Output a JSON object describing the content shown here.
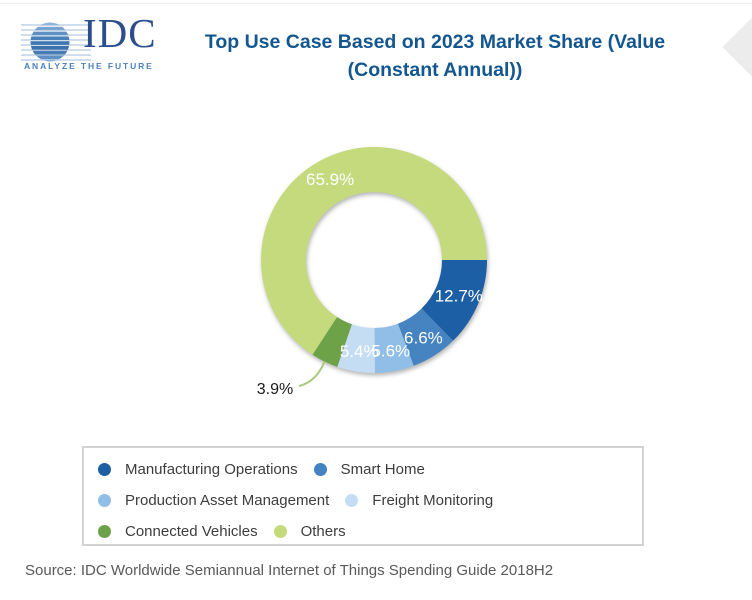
{
  "header": {
    "logo": {
      "text": "IDC",
      "tagline": "ANALYZE THE FUTURE"
    },
    "title_line1": "Top Use Case Based on 2023 Market Share (Value",
    "title_line2": "(Constant Annual))"
  },
  "chart_data": {
    "type": "pie",
    "subtype": "donut",
    "title": "Top Use Case Based on 2023 Market Share (Value (Constant Annual))",
    "units": "percent of market share value",
    "start_angle_deg": 90,
    "legend_position": "bottom",
    "slices": [
      {
        "label": "Manufacturing Operations",
        "value": 12.7,
        "display": "12.7%",
        "color": "#1E5FA4"
      },
      {
        "label": "Smart Home",
        "value": 6.6,
        "display": "6.6%",
        "color": "#4483C1"
      },
      {
        "label": "Production Asset Management",
        "value": 5.6,
        "display": "5.6%",
        "color": "#90BEE6"
      },
      {
        "label": "Freight Monitoring",
        "value": 5.4,
        "display": "5.4%",
        "color": "#C5DDF3"
      },
      {
        "label": "Connected Vehicles",
        "value": 3.9,
        "display": "3.9%",
        "color": "#6DA249",
        "label_outside": true
      },
      {
        "label": "Others",
        "value": 65.9,
        "display": "65.9%",
        "color": "#C4DA7B"
      }
    ],
    "leader_line_color": "#A9C97C"
  },
  "footer": {
    "source": "Source: IDC Worldwide Semiannual Internet of Things Spending Guide 2018H2"
  }
}
